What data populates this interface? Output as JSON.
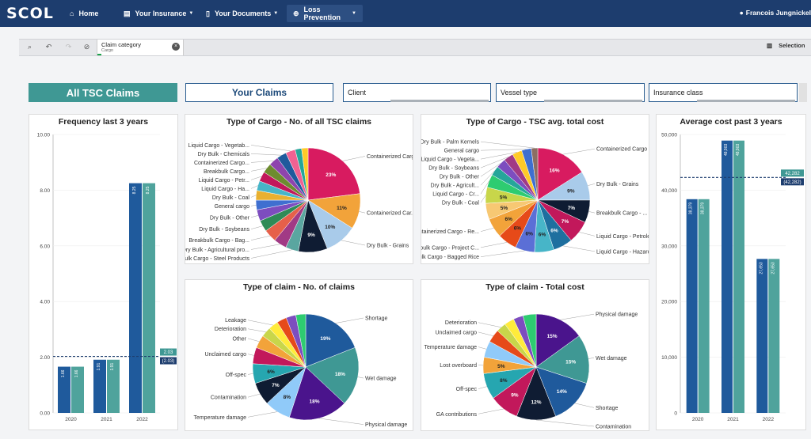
{
  "app": {
    "logo": "SCOL",
    "user": "Francois Jungnickel"
  },
  "nav": [
    {
      "label": "Home",
      "icon": "home-icon"
    },
    {
      "label": "Your Insurance",
      "icon": "document-icon"
    },
    {
      "label": "Your Documents",
      "icon": "file-icon"
    },
    {
      "label": "Loss Prevention",
      "icon": "globe-icon"
    }
  ],
  "tab": {
    "title": "Claim category",
    "subtitle": "Cargo",
    "selection_label": "Selection"
  },
  "buttons": {
    "all_claims": "All TSC Claims",
    "your_claims": "Your Claims"
  },
  "filters": [
    "Client",
    "Vessel type",
    "Insurance class"
  ],
  "colors": {
    "navy": "#1d3d6e",
    "teal": "#3f9894",
    "bar_blue": "#1f5a9c",
    "bar_teal": "#4fa39c"
  },
  "chart_data": [
    {
      "id": "freq",
      "type": "bar",
      "title": "Frequency last 3 years",
      "categories": [
        "2020",
        "2021",
        "2022"
      ],
      "series": [
        {
          "values": [
            1.66,
            1.91,
            8.25
          ]
        },
        {
          "values": [
            1.66,
            1.91,
            8.25
          ]
        }
      ],
      "data_labels": [
        "1.66",
        "1.66",
        "1.91",
        "1.91",
        "8.25",
        "8.25"
      ],
      "ylim": [
        0,
        10
      ],
      "yticks": [
        "0.00",
        "2.00",
        "4.00",
        "6.00",
        "8.00",
        "10.00"
      ],
      "reference": {
        "value": 2.03,
        "label1": "2.03",
        "label2": "(2.03)"
      }
    },
    {
      "id": "cost",
      "type": "bar",
      "title": "Average cost past 3 years",
      "categories": [
        "2020",
        "2021",
        "2022"
      ],
      "series": [
        {
          "values": [
            38379,
            48903,
            27653
          ]
        },
        {
          "values": [
            38379,
            48903,
            27653
          ]
        }
      ],
      "data_labels": [
        "38,379",
        "38,379",
        "48,903",
        "48,903",
        "27,653",
        "27,653"
      ],
      "ylim": [
        0,
        50000
      ],
      "yticks": [
        "0",
        "10,000",
        "20,000",
        "30,000",
        "40,000",
        "50,000"
      ],
      "reference": {
        "value": 42282,
        "label1": "42,282",
        "label2": "(42,282)"
      }
    },
    {
      "id": "cargo_count",
      "type": "pie",
      "title": "Type of Cargo - No. of all TSC claims",
      "slices": [
        {
          "label": "Containerized Cargo - ...",
          "value": 23,
          "pct": "23%",
          "color": "#d81b60"
        },
        {
          "label": "Containerized Car...",
          "value": 11,
          "pct": "11%",
          "color": "#f2a33a"
        },
        {
          "label": "Dry Bulk - Grains",
          "value": 10,
          "pct": "10%",
          "color": "#a9cbea"
        },
        {
          "label": "",
          "value": 9,
          "pct": "9%",
          "color": "#0f1c33"
        },
        {
          "label": "Breakbulk Cargo - Steel Products",
          "value": 4,
          "pct": "",
          "color": "#5aa6a0"
        },
        {
          "label": "Dry Bulk - Agricultural pro...",
          "value": 4,
          "pct": "",
          "color": "#a13a85"
        },
        {
          "label": "Breakbulk Cargo - Bag...",
          "value": 4,
          "pct": "",
          "color": "#e6604a"
        },
        {
          "label": "Dry Bulk - Soybeans",
          "value": 3.5,
          "pct": "",
          "color": "#2e8b57"
        },
        {
          "label": "Dry Bulk - Other",
          "value": 3.5,
          "pct": "",
          "color": "#7d4dbf"
        },
        {
          "label": "General cargo",
          "value": 3,
          "pct": "",
          "color": "#3f6fd0"
        },
        {
          "label": "Dry Bulk - Coal",
          "value": 3,
          "pct": "",
          "color": "#e8b030"
        },
        {
          "label": "Liquid Cargo - Ha...",
          "value": 3,
          "pct": "",
          "color": "#47b5c8"
        },
        {
          "label": "Liquid Cargo - Petr...",
          "value": 3,
          "pct": "",
          "color": "#c2185b"
        },
        {
          "label": "Breakbulk Cargo...",
          "value": 3,
          "pct": "",
          "color": "#6d8c2f"
        },
        {
          "label": "Containerized Cargo...",
          "value": 3,
          "pct": "",
          "color": "#8e44ad"
        },
        {
          "label": "Dry Bulk - Chemicals",
          "value": 3,
          "pct": "",
          "color": "#1f5a9c"
        },
        {
          "label": "Liquid Cargo - Vegetab...",
          "value": 3,
          "pct": "",
          "color": "#f06292"
        },
        {
          "label": "",
          "value": 2,
          "pct": "",
          "color": "#26a69a"
        },
        {
          "label": "",
          "value": 2,
          "pct": "",
          "color": "#ffca28"
        }
      ]
    },
    {
      "id": "cargo_cost",
      "type": "pie",
      "title": "Type of Cargo - TSC avg. total cost",
      "slices": [
        {
          "label": "Containerized Cargo - Uniti...",
          "value": 16,
          "pct": "16%",
          "color": "#d81b60"
        },
        {
          "label": "Dry Bulk - Grains",
          "value": 9,
          "pct": "9%",
          "color": "#a9cbea"
        },
        {
          "label": "Breakbulk Cargo - ...",
          "value": 7,
          "pct": "7%",
          "color": "#0f1c33"
        },
        {
          "label": "Liquid Cargo - Petroleum",
          "value": 7,
          "pct": "7%",
          "color": "#c2185b"
        },
        {
          "label": "Liquid Cargo - Hazardous Che...",
          "value": 6,
          "pct": "6%",
          "color": "#1e6f9f"
        },
        {
          "label": "",
          "value": 6,
          "pct": "6%",
          "color": "#47b5c8"
        },
        {
          "label": "Breakbulk Cargo - Bagged Rice",
          "value": 6,
          "pct": "6%",
          "color": "#5b6fd6"
        },
        {
          "label": "Breakbulk Cargo - Project C...",
          "value": 6,
          "pct": "6%",
          "color": "#e64a19"
        },
        {
          "label": "Containerized Cargo - Re...",
          "value": 6,
          "pct": "6%",
          "color": "#f2a33a"
        },
        {
          "label": "",
          "value": 5,
          "pct": "5%",
          "color": "#f7c873"
        },
        {
          "label": "Dry Bulk - Coal",
          "value": 5,
          "pct": "5%",
          "color": "#c8d64a"
        },
        {
          "label": "Liquid Cargo - Cr...",
          "value": 4,
          "pct": "",
          "color": "#2ecc71"
        },
        {
          "label": "Dry Bulk - Agricult...",
          "value": 3,
          "pct": "",
          "color": "#26a69a"
        },
        {
          "label": "Dry Bulk - Other",
          "value": 3,
          "pct": "",
          "color": "#7d4dbf"
        },
        {
          "label": "Dry Bulk - Soybeans",
          "value": 3,
          "pct": "",
          "color": "#a13a85"
        },
        {
          "label": "Liquid Cargo - Vegeta...",
          "value": 3,
          "pct": "",
          "color": "#ffca28"
        },
        {
          "label": "General cargo",
          "value": 3,
          "pct": "",
          "color": "#3f6fd0"
        },
        {
          "label": "Dry Bulk - Palm Kernels",
          "value": 2,
          "pct": "",
          "color": "#8d6e63"
        }
      ]
    },
    {
      "id": "claim_count",
      "type": "pie",
      "title": "Type of claim - No. of claims",
      "slices": [
        {
          "label": "Shortage",
          "value": 19,
          "pct": "19%",
          "color": "#1f5a9c"
        },
        {
          "label": "Wet damage",
          "value": 18,
          "pct": "18%",
          "color": "#3f9894"
        },
        {
          "label": "Physical damage",
          "value": 18,
          "pct": "18%",
          "color": "#4a148c"
        },
        {
          "label": "Temperature damage",
          "value": 8,
          "pct": "8%",
          "color": "#90caf9"
        },
        {
          "label": "Contamination",
          "value": 7,
          "pct": "7%",
          "color": "#0f1c33"
        },
        {
          "label": "Off-spec",
          "value": 6,
          "pct": "6%",
          "color": "#26a6b0"
        },
        {
          "label": "Unclaimed cargo",
          "value": 5,
          "pct": "",
          "color": "#c2185b"
        },
        {
          "label": "Other",
          "value": 4,
          "pct": "",
          "color": "#f2a33a"
        },
        {
          "label": "Deterioration",
          "value": 3,
          "pct": "",
          "color": "#c8d64a"
        },
        {
          "label": "Leakage",
          "value": 3,
          "pct": "",
          "color": "#ffeb3b"
        },
        {
          "label": "",
          "value": 3,
          "pct": "",
          "color": "#e64a19"
        },
        {
          "label": "",
          "value": 3,
          "pct": "",
          "color": "#7d4dbf"
        },
        {
          "label": "",
          "value": 3,
          "pct": "",
          "color": "#2ecc71"
        }
      ]
    },
    {
      "id": "claim_cost",
      "type": "pie",
      "title": "Type of claim - Total cost",
      "slices": [
        {
          "label": "Physical damage",
          "value": 15,
          "pct": "15%",
          "color": "#4a148c"
        },
        {
          "label": "Wet damage",
          "value": 15,
          "pct": "15%",
          "color": "#3f9894"
        },
        {
          "label": "Shortage",
          "value": 14,
          "pct": "14%",
          "color": "#1f5a9c"
        },
        {
          "label": "Contamination",
          "value": 12,
          "pct": "12%",
          "color": "#0f1c33"
        },
        {
          "label": "GA contributions",
          "value": 9,
          "pct": "9%",
          "color": "#c2185b"
        },
        {
          "label": "Off-spec",
          "value": 8,
          "pct": "8%",
          "color": "#26a6b0"
        },
        {
          "label": "Lost overboard",
          "value": 5,
          "pct": "5%",
          "color": "#f2a33a"
        },
        {
          "label": "Temperature damage",
          "value": 5,
          "pct": "",
          "color": "#90caf9"
        },
        {
          "label": "Unclaimed cargo",
          "value": 4,
          "pct": "",
          "color": "#e64a19"
        },
        {
          "label": "Deterioration",
          "value": 3,
          "pct": "",
          "color": "#c8d64a"
        },
        {
          "label": "",
          "value": 3,
          "pct": "",
          "color": "#ffeb3b"
        },
        {
          "label": "",
          "value": 3,
          "pct": "",
          "color": "#7d4dbf"
        },
        {
          "label": "",
          "value": 4,
          "pct": "",
          "color": "#2ecc71"
        }
      ]
    }
  ]
}
